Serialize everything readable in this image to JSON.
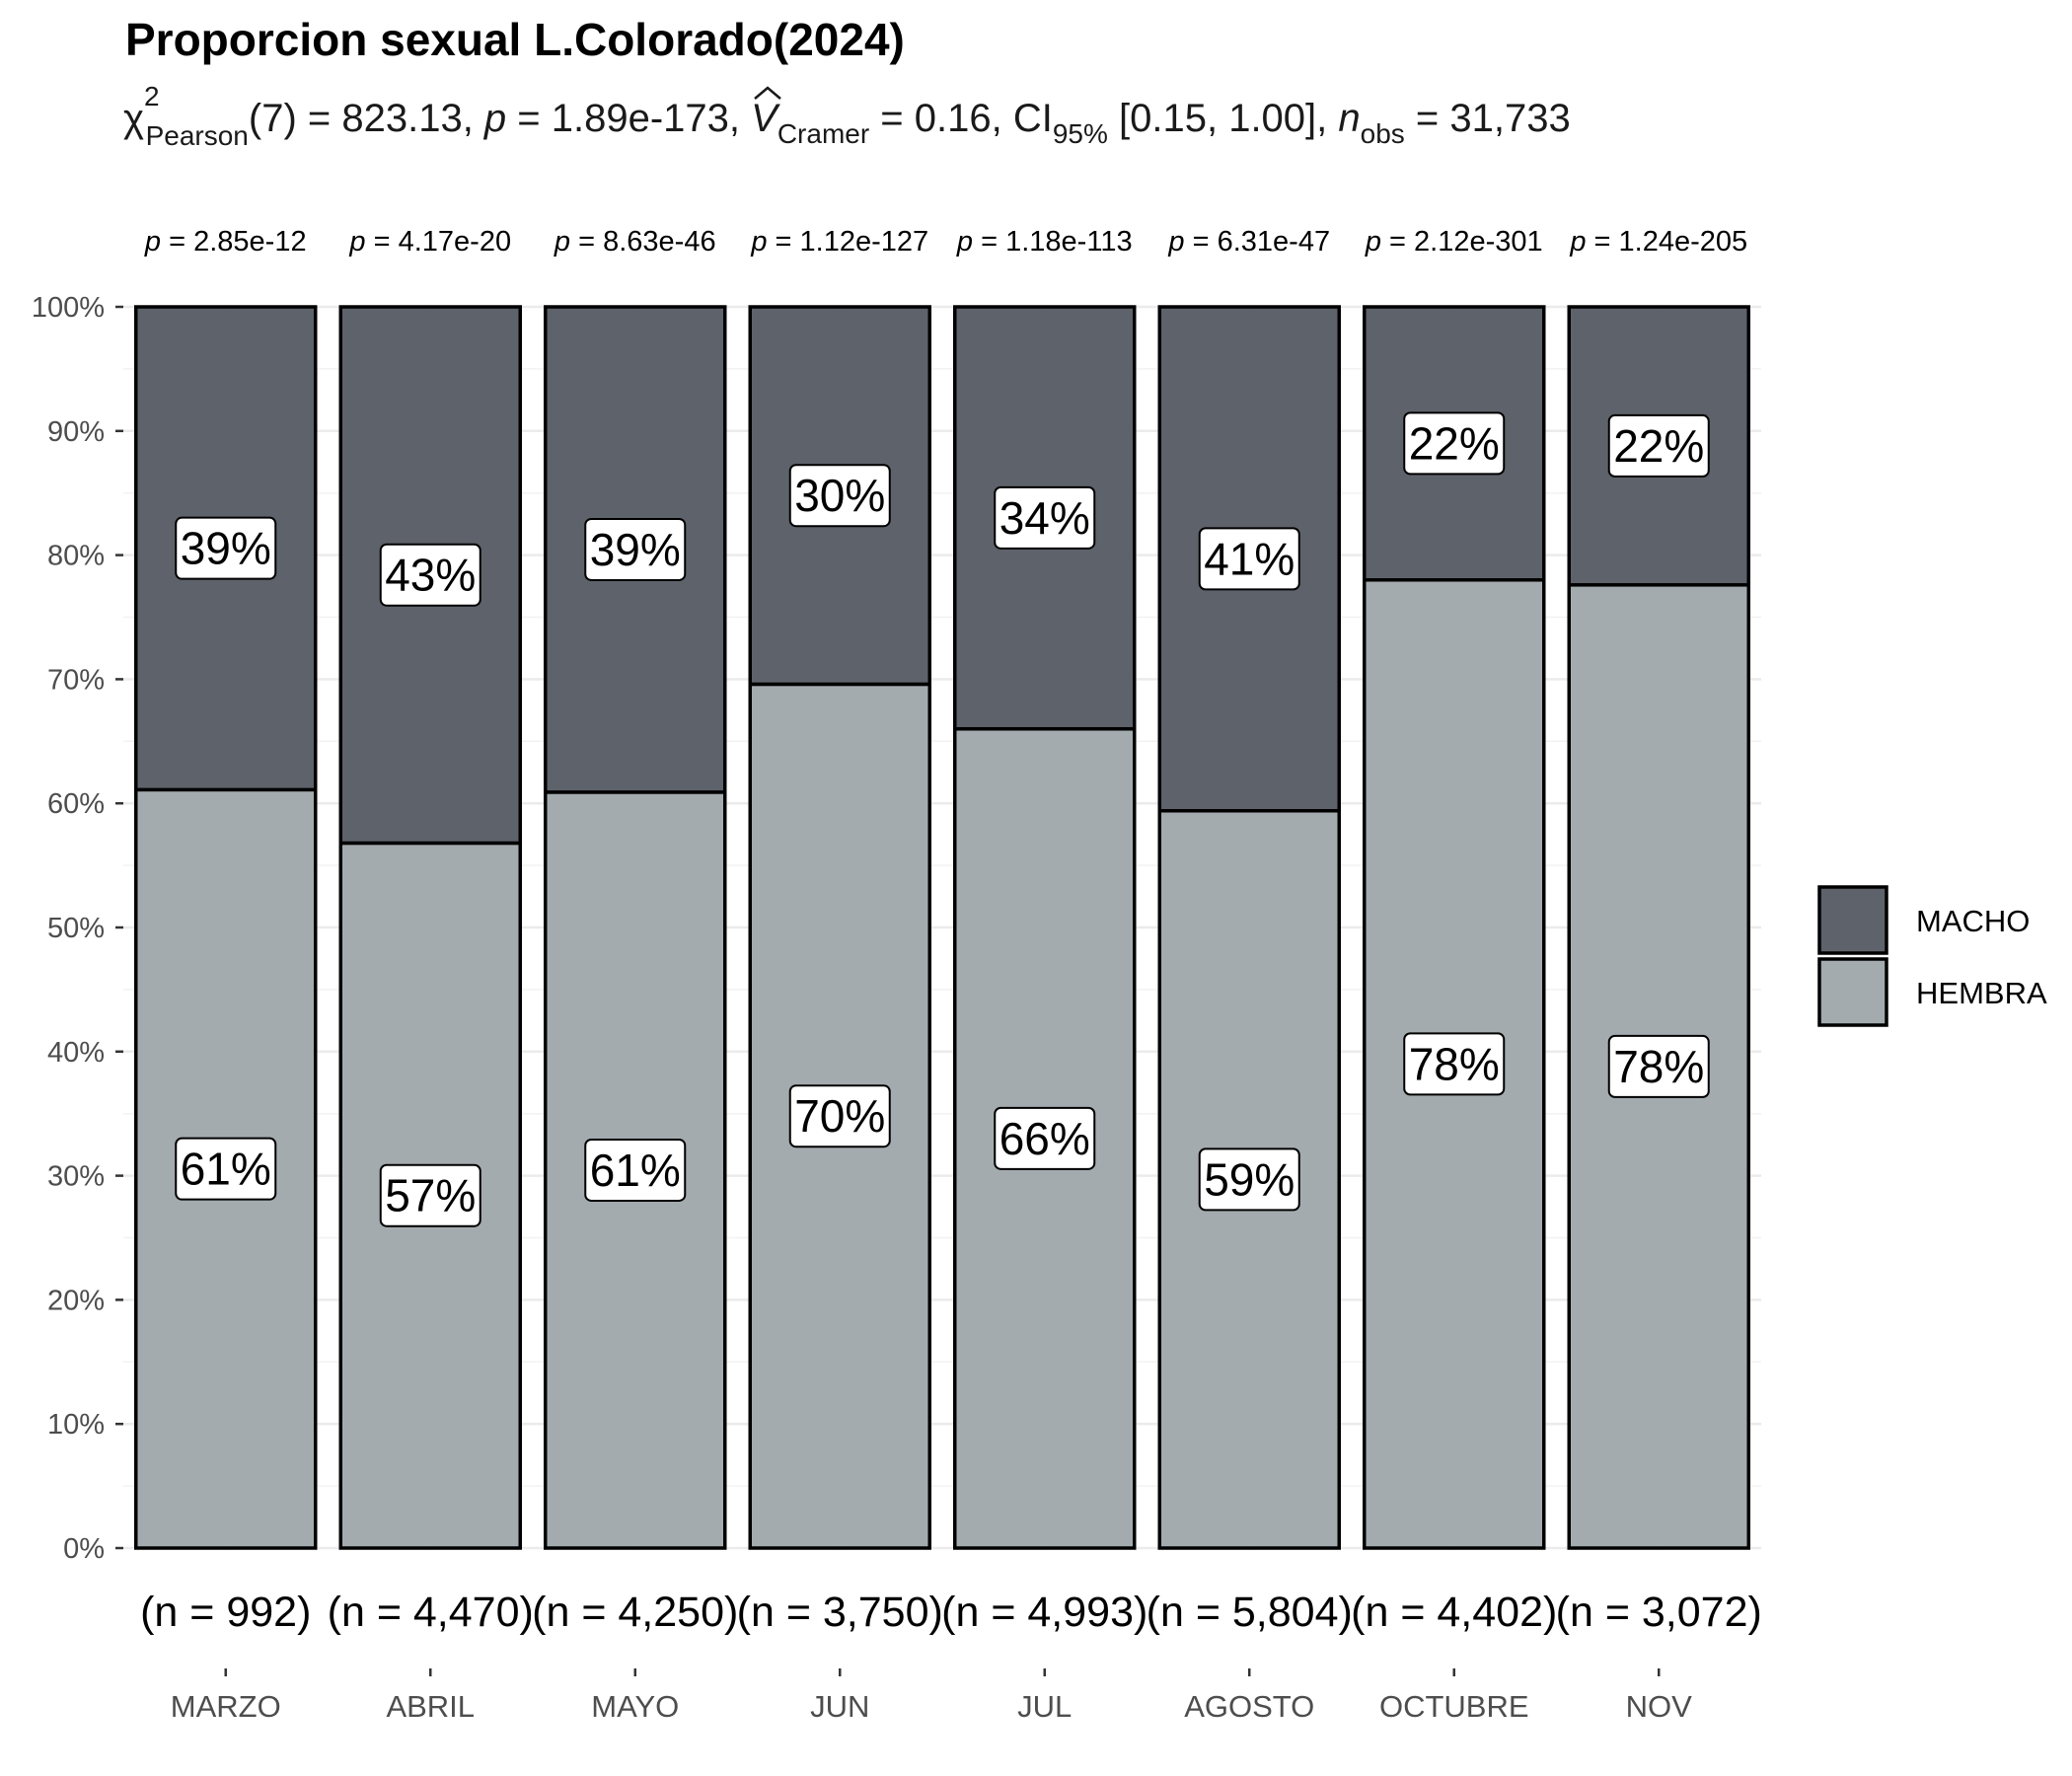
{
  "chart_data": {
    "type": "bar",
    "stacked": "percent",
    "title": "Proporcion sexual L.Colorado(2024)",
    "subtitle": {
      "chi_symbol": "χ",
      "chi_superscript": "2",
      "chi_subscript": "Pearson",
      "df": "(7) = 823.13, ",
      "p_italic": "p",
      "p_value": " = 1.89e-173, ",
      "v_italic": "V",
      "v_subscript": "Cramer",
      "v_value": " = 0.16, CI",
      "ci_subscript": "95%",
      "ci_value": " [0.15, 1.00], ",
      "n_italic": "n",
      "n_subscript": "obs",
      "n_value": " = 31,733"
    },
    "categories": [
      "MARZO",
      "ABRIL",
      "MAYO",
      "JUN",
      "JUL",
      "AGOSTO",
      "OCTUBRE",
      "NOV"
    ],
    "series": [
      {
        "name": "HEMBRA",
        "color": "#a4abae",
        "values": [
          61.1,
          56.8,
          60.9,
          69.6,
          66.0,
          59.4,
          78.0,
          77.6
        ],
        "labels": [
          "61%",
          "57%",
          "61%",
          "70%",
          "66%",
          "59%",
          "78%",
          "78%"
        ]
      },
      {
        "name": "MACHO",
        "color": "#5e626b",
        "values": [
          38.9,
          43.2,
          39.1,
          30.4,
          34.0,
          40.6,
          22.0,
          22.4
        ],
        "labels": [
          "39%",
          "43%",
          "39%",
          "30%",
          "34%",
          "41%",
          "22%",
          "22%"
        ]
      }
    ],
    "pvalue_prefix": "p",
    "pvalues": [
      " = 2.85e-12",
      " = 4.17e-20",
      " = 8.63e-46",
      " = 1.12e-127",
      " = 1.18e-113",
      " = 6.31e-47",
      " = 2.12e-301",
      " = 1.24e-205"
    ],
    "counts": [
      "(n = 992)",
      "(n = 4,470)",
      "(n = 4,250)",
      "(n = 3,750)",
      "(n = 4,993)",
      "(n = 5,804)",
      "(n = 4,402)",
      "(n = 3,072)"
    ],
    "ylim": [
      0,
      100
    ],
    "yticks": [
      0,
      10,
      20,
      30,
      40,
      50,
      60,
      70,
      80,
      90,
      100
    ],
    "ytick_labels": [
      "0%",
      "10%",
      "20%",
      "30%",
      "40%",
      "50%",
      "60%",
      "70%",
      "80%",
      "90%",
      "100%"
    ],
    "xlabel": "",
    "ylabel": "",
    "legend": {
      "position": "right",
      "entries": [
        "MACHO",
        "HEMBRA"
      ]
    },
    "grid": true
  }
}
